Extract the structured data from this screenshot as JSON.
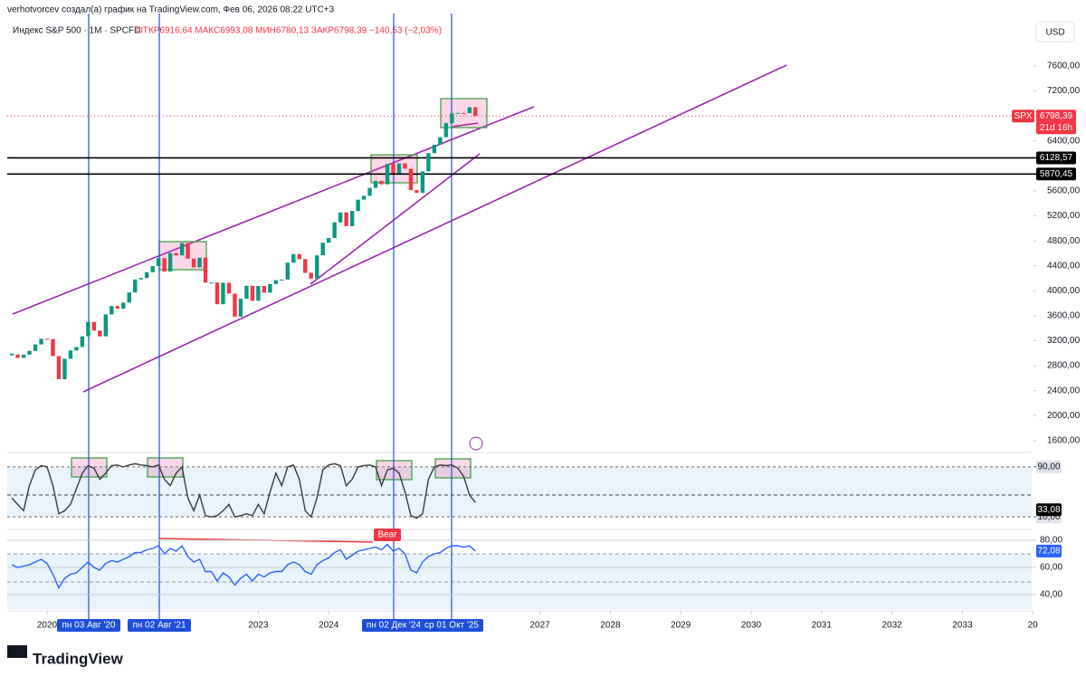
{
  "chart_data": [
    {
      "type": "candlestick",
      "credit": "verhotvorcev создал(а) график на TradingView.com, Фев 06, 2026 08:22 UTC+3",
      "title": "Индекс S&P 500 · 1M · SPCFD",
      "ohlc_text": "ОТКР6916,64 МАКС6993,08 МИН6780,13 ЗАКР6798,39 −140,53 (−2,03%)",
      "currency": "USD",
      "symbol": "SPX",
      "last_label": "6798,39",
      "countdown": "21d 16h",
      "logo": "TradingView",
      "up_color": "#089981",
      "down_color": "#f23645",
      "x": [
        "2019-07",
        "2019-08",
        "2019-09",
        "2019-10",
        "2019-11",
        "2019-12",
        "2020-01",
        "2020-02",
        "2020-03",
        "2020-04",
        "2020-05",
        "2020-06",
        "2020-07",
        "2020-08",
        "2020-09",
        "2020-10",
        "2020-11",
        "2020-12",
        "2021-01",
        "2021-02",
        "2021-03",
        "2021-04",
        "2021-05",
        "2021-06",
        "2021-07",
        "2021-08",
        "2021-09",
        "2021-10",
        "2021-11",
        "2021-12",
        "2022-01",
        "2022-02",
        "2022-03",
        "2022-04",
        "2022-05",
        "2022-06",
        "2022-07",
        "2022-08",
        "2022-09",
        "2022-10",
        "2022-11",
        "2022-12",
        "2023-01",
        "2023-02",
        "2023-03",
        "2023-04",
        "2023-05",
        "2023-06",
        "2023-07",
        "2023-08",
        "2023-09",
        "2023-10",
        "2023-11",
        "2023-12",
        "2024-01",
        "2024-02",
        "2024-03",
        "2024-04",
        "2024-05",
        "2024-06",
        "2024-07",
        "2024-08",
        "2024-09",
        "2024-10",
        "2024-11",
        "2024-12",
        "2025-01",
        "2025-02",
        "2025-03",
        "2025-04",
        "2025-05",
        "2025-06",
        "2025-07",
        "2025-08",
        "2025-09",
        "2025-10",
        "2025-11",
        "2025-12",
        "2026-01",
        "2026-02"
      ],
      "close": [
        2980,
        2926,
        2977,
        3038,
        3141,
        3231,
        3226,
        2954,
        2585,
        2912,
        3044,
        3100,
        3271,
        3500,
        3363,
        3270,
        3622,
        3756,
        3714,
        3811,
        3973,
        4181,
        4204,
        4298,
        4395,
        4523,
        4308,
        4605,
        4567,
        4766,
        4516,
        4374,
        4530,
        4132,
        4132,
        3785,
        4130,
        3955,
        3586,
        3872,
        4080,
        3840,
        4077,
        3970,
        4109,
        4169,
        4180,
        4450,
        4589,
        4508,
        4288,
        4194,
        4568,
        4770,
        4846,
        5096,
        5254,
        5036,
        5278,
        5460,
        5522,
        5648,
        5762,
        5705,
        6032,
        5882,
        6041,
        5955,
        5612,
        5569,
        5912,
        6205,
        6339,
        6460,
        6688,
        6840,
        6849,
        6845,
        6939,
        6798.39
      ],
      "levels": [
        {
          "value": 6128.57,
          "label": "6128,57"
        },
        {
          "value": 5870.45,
          "label": "5870,45"
        }
      ],
      "ylim": [
        1410,
        8440
      ],
      "yticks": [
        {
          "value": 7600,
          "label": "7600,00"
        },
        {
          "value": 7200,
          "label": "7200,00"
        },
        {
          "value": 6400,
          "label": "6400,00"
        },
        {
          "value": 5600,
          "label": "5600,00"
        },
        {
          "value": 5200,
          "label": "5200,00"
        },
        {
          "value": 4800,
          "label": "4800,00"
        },
        {
          "value": 4400,
          "label": "4400,00"
        },
        {
          "value": 4000,
          "label": "4000,00"
        },
        {
          "value": 3600,
          "label": "3600,00"
        },
        {
          "value": 3200,
          "label": "3200,00"
        },
        {
          "value": 2800,
          "label": "2800,00"
        },
        {
          "value": 2400,
          "label": "2400,00"
        },
        {
          "value": 2000,
          "label": "2000,00"
        },
        {
          "value": 1600,
          "label": "1600,00"
        }
      ],
      "xticks": [
        2020,
        2023,
        2024,
        2027,
        2028,
        2029,
        2030,
        2031,
        2032,
        2033,
        {
          "value": 2034,
          "label": "20"
        }
      ],
      "markers": [
        "пн 03 Авг '20",
        "пн 02 Авг '21",
        "пн 02 Дек '24",
        "ср 01 Окт '25"
      ]
    },
    {
      "type": "line",
      "color": "#3c3c3c",
      "values": [
        40,
        30,
        20,
        60,
        85,
        92,
        90,
        60,
        15,
        20,
        30,
        55,
        80,
        92,
        88,
        70,
        80,
        92,
        93,
        90,
        93,
        95,
        93,
        92,
        90,
        93,
        70,
        60,
        80,
        90,
        40,
        20,
        45,
        12,
        10,
        12,
        20,
        30,
        10,
        12,
        15,
        12,
        30,
        15,
        50,
        80,
        60,
        90,
        93,
        70,
        20,
        10,
        40,
        85,
        93,
        95,
        92,
        60,
        70,
        90,
        92,
        93,
        90,
        60,
        85,
        88,
        80,
        50,
        12,
        8,
        15,
        70,
        90,
        93,
        92,
        93,
        88,
        75,
        45,
        33.08
      ],
      "last_label": "33,08",
      "ylim": [
        -10,
        113
      ],
      "yticks": [
        {
          "value": 90,
          "label": "90,00"
        },
        {
          "value": 10,
          "label": "10,00"
        }
      ]
    },
    {
      "type": "line",
      "color": "#2962ff",
      "values": [
        62,
        60,
        61,
        62,
        64,
        66,
        63,
        55,
        45,
        52,
        55,
        56,
        60,
        64,
        60,
        58,
        63,
        65,
        64,
        66,
        68,
        71,
        71,
        73,
        74,
        76,
        70,
        74,
        72,
        76,
        68,
        64,
        66,
        57,
        57,
        50,
        56,
        53,
        47,
        52,
        55,
        50,
        55,
        53,
        56,
        57,
        57,
        62,
        64,
        62,
        57,
        55,
        62,
        65,
        67,
        71,
        73,
        66,
        69,
        72,
        73,
        74,
        75,
        73,
        77,
        72,
        74,
        70,
        58,
        56,
        64,
        68,
        70,
        71,
        74,
        76,
        76,
        75,
        76,
        72.08
      ],
      "last_label": "72,08",
      "annotation": "Bear",
      "ylim": [
        28,
        88
      ],
      "yticks": [
        {
          "value": 80,
          "label": "80,00"
        },
        {
          "value": 60,
          "label": "60,00"
        },
        {
          "value": 40,
          "label": "40,00"
        }
      ]
    }
  ]
}
